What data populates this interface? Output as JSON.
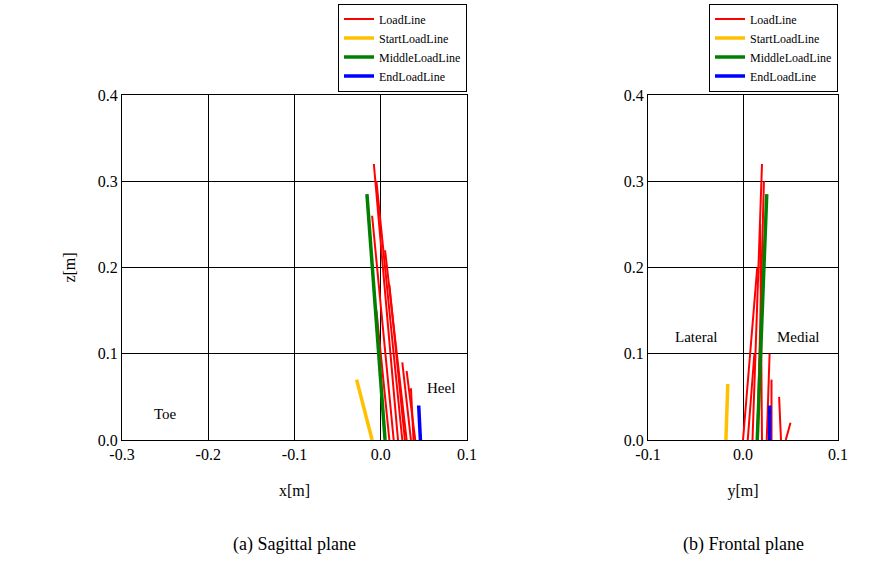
{
  "chart_data": [
    {
      "type": "line",
      "title": "(a) Sagittal plane",
      "x_label": "x[m]",
      "y_label": "z[m]",
      "xlim": [
        -0.3,
        0.1
      ],
      "ylim": [
        0,
        0.4
      ],
      "xticks": [
        -0.3,
        -0.2,
        -0.1,
        {
          "value": 0,
          "label": "0.0"
        },
        0.1
      ],
      "yticks": [
        {
          "value": 0,
          "label": "0.0"
        },
        0.1,
        0.2,
        0.3,
        0.4
      ],
      "grid": true,
      "legend": "top right",
      "annotations": [
        {
          "text": "Toe",
          "x": -0.25,
          "y": 0.03
        },
        {
          "text": "Heel",
          "x": 0.07,
          "y": 0.06
        }
      ],
      "series": [
        {
          "name": "LoadLine",
          "color": "#ff0000",
          "x": [
            0.02,
            -0.008,
            null,
            0.025,
            -0.005,
            null,
            0.015,
            -0.01,
            null,
            0.03,
            0.005,
            null,
            0.035,
            0.025,
            null,
            0.04,
            0.03,
            null,
            0.01,
            -0.005,
            null,
            0.028,
            0.01,
            null,
            0.038,
            0.035
          ],
          "y": [
            0,
            0.32,
            null,
            0,
            0.3,
            null,
            0,
            0.26,
            null,
            0,
            0.22,
            null,
            0,
            0.09,
            null,
            0,
            0.08,
            null,
            0,
            0.15,
            null,
            0,
            0.18,
            null,
            0,
            0.06
          ]
        },
        {
          "name": "StartLoadLine",
          "color": "#ffc000",
          "x": [
            -0.01,
            -0.028
          ],
          "y": [
            0,
            0.07
          ]
        },
        {
          "name": "MiddleLoadLine",
          "color": "#008000",
          "x": [
            0.005,
            -0.016
          ],
          "y": [
            0,
            0.285
          ]
        },
        {
          "name": "EndLoadLine",
          "color": "#0000ff",
          "x": [
            0.046,
            0.044
          ],
          "y": [
            0,
            0.04
          ]
        }
      ]
    },
    {
      "type": "line",
      "title": "(b) Frontal plane",
      "x_label": "y[m]",
      "xlim": [
        -0.1,
        0.1
      ],
      "ylim": [
        0,
        0.4
      ],
      "xticks": [
        -0.1,
        {
          "value": 0,
          "label": "0.0"
        },
        0.1
      ],
      "yticks": [
        {
          "value": 0,
          "label": "0.0"
        },
        0.1,
        0.2,
        0.3,
        0.4
      ],
      "grid": true,
      "legend": "top right",
      "annotations": [
        {
          "text": "Lateral",
          "x": -0.05,
          "y": 0.12
        },
        {
          "text": "Medial",
          "x": 0.058,
          "y": 0.12
        }
      ],
      "series": [
        {
          "name": "LoadLine",
          "color": "#ff0000",
          "x": [
            0.01,
            0.02,
            null,
            0.015,
            0.022,
            null,
            0.005,
            0.012,
            null,
            0.03,
            0.03,
            null,
            0.045,
            0.05,
            null,
            0.02,
            0.018,
            null,
            0.0,
            0.015,
            null,
            0.025,
            0.028,
            null,
            0.04,
            0.038
          ],
          "y": [
            0,
            0.32,
            null,
            0,
            0.3,
            null,
            0,
            0.1,
            null,
            0,
            0.07,
            null,
            0,
            0.02,
            null,
            0,
            0.25,
            null,
            0,
            0.2,
            null,
            0,
            0.1,
            null,
            0,
            0.05
          ]
        },
        {
          "name": "StartLoadLine",
          "color": "#ffc000",
          "x": [
            -0.018,
            -0.016
          ],
          "y": [
            0,
            0.065
          ]
        },
        {
          "name": "MiddleLoadLine",
          "color": "#008000",
          "x": [
            0.015,
            0.025
          ],
          "y": [
            0,
            0.285
          ]
        },
        {
          "name": "EndLoadLine",
          "color": "#0000ff",
          "x": [
            0.028,
            0.028
          ],
          "y": [
            0,
            0.04
          ]
        }
      ]
    }
  ]
}
